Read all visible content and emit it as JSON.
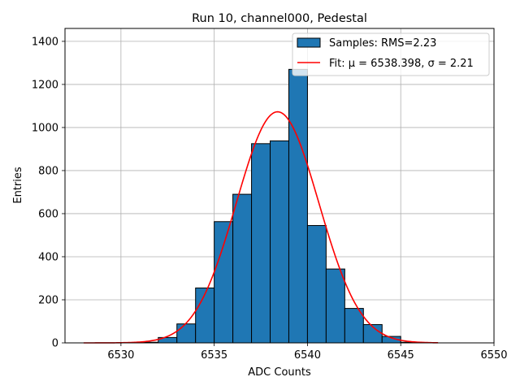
{
  "chart_data": {
    "type": "histogram",
    "title": "Run 10, channel000, Pedestal",
    "xlabel": "ADC Counts",
    "ylabel": "Entries",
    "xlim": [
      6527,
      6550
    ],
    "ylim": [
      0,
      1460
    ],
    "xticks": [
      6530,
      6535,
      6540,
      6545,
      6550
    ],
    "yticks": [
      0,
      200,
      400,
      600,
      800,
      1000,
      1200,
      1400
    ],
    "grid": true,
    "legend_position": "top-right",
    "bin_width": 1,
    "bins": [
      {
        "left": 6531,
        "count": 3
      },
      {
        "left": 6532,
        "count": 25
      },
      {
        "left": 6533,
        "count": 88
      },
      {
        "left": 6534,
        "count": 255
      },
      {
        "left": 6535,
        "count": 563
      },
      {
        "left": 6536,
        "count": 690
      },
      {
        "left": 6537,
        "count": 925
      },
      {
        "left": 6538,
        "count": 938
      },
      {
        "left": 6539,
        "count": 1270
      },
      {
        "left": 6540,
        "count": 545
      },
      {
        "left": 6541,
        "count": 343
      },
      {
        "left": 6542,
        "count": 160
      },
      {
        "left": 6543,
        "count": 85
      },
      {
        "left": 6544,
        "count": 30
      },
      {
        "left": 6545,
        "count": 3
      }
    ],
    "fit": {
      "mu": 6538.398,
      "sigma": 2.21,
      "peak": 1073,
      "x_range": [
        6528,
        6547
      ]
    },
    "series": [
      {
        "name": "Samples: RMS=2.23",
        "kind": "bar",
        "color": "#1f77b4",
        "edge": "#000000"
      },
      {
        "name": "Fit: μ = 6538.398, σ = 2.21",
        "kind": "line",
        "color": "#ff0000"
      }
    ]
  }
}
